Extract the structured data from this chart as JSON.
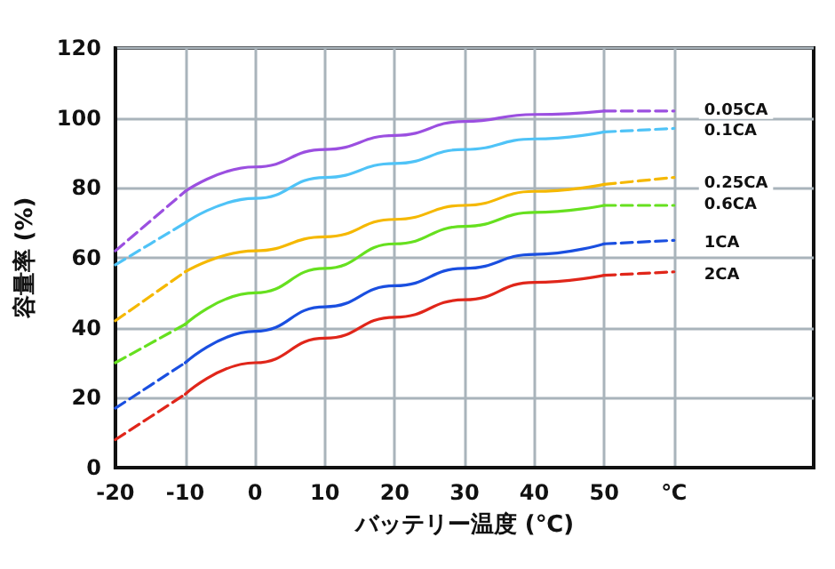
{
  "chart_data": {
    "type": "line",
    "xlabel": "バッテリー温度 (℃)",
    "ylabel": "容量率 (%)",
    "xlim": [
      -20,
      80
    ],
    "xticks": [
      -20,
      -10,
      0,
      10,
      20,
      30,
      40,
      50,
      {
        "value": 60,
        "label": "℃"
      }
    ],
    "ylim": [
      0,
      120
    ],
    "yticks": [
      0,
      20,
      40,
      60,
      80,
      100,
      120
    ],
    "grid": true,
    "marker": "none",
    "line_style": "solid",
    "series": [
      {
        "name": "0.05CA",
        "color": "#9b4fe0",
        "x": [
          -10,
          0,
          10,
          20,
          30,
          40,
          50
        ],
        "values": [
          79,
          86,
          91,
          95,
          99,
          101,
          102
        ]
      },
      {
        "color": "#9b4fe0",
        "line_style": "dashed",
        "x": [
          -20,
          -10,
          0,
          50,
          60
        ],
        "values": [
          62,
          79,
          null,
          102,
          102
        ]
      },
      {
        "name": "0.1CA",
        "color": "#4fc3f7",
        "x": [
          -10,
          0,
          10,
          20,
          30,
          40,
          50
        ],
        "values": [
          70,
          77,
          83,
          87,
          91,
          94,
          96
        ]
      },
      {
        "color": "#4fc3f7",
        "line_style": "dashed",
        "x": [
          -20,
          -10,
          0,
          50,
          60
        ],
        "values": [
          58,
          70,
          null,
          96,
          97
        ]
      },
      {
        "name": "0.25CA",
        "color": "#f5b800",
        "x": [
          -10,
          0,
          10,
          20,
          30,
          40,
          50
        ],
        "values": [
          56,
          62,
          66,
          71,
          75,
          79,
          81
        ]
      },
      {
        "color": "#f5b800",
        "line_style": "dashed",
        "x": [
          -20,
          -10,
          0,
          50,
          60
        ],
        "values": [
          42,
          56,
          null,
          81,
          83
        ]
      },
      {
        "name": "0.6CA",
        "color": "#66e01f",
        "x": [
          -10,
          0,
          10,
          20,
          30,
          40,
          50
        ],
        "values": [
          41,
          50,
          57,
          64,
          69,
          73,
          75
        ]
      },
      {
        "color": "#66e01f",
        "line_style": "dashed",
        "x": [
          -20,
          -10,
          0,
          50,
          60
        ],
        "values": [
          30,
          41,
          null,
          75,
          75
        ]
      },
      {
        "name": "1CA",
        "color": "#1a4fe0",
        "x": [
          -10,
          0,
          10,
          20,
          30,
          40,
          50
        ],
        "values": [
          30,
          39,
          46,
          52,
          57,
          61,
          64
        ]
      },
      {
        "color": "#1a4fe0",
        "line_style": "dashed",
        "x": [
          -20,
          -10,
          0,
          50,
          60
        ],
        "values": [
          17,
          30,
          null,
          64,
          65
        ]
      },
      {
        "name": "2CA",
        "color": "#e0261a",
        "x": [
          -10,
          0,
          10,
          20,
          30,
          40,
          50
        ],
        "values": [
          21,
          30,
          37,
          43,
          48,
          53,
          55
        ]
      },
      {
        "color": "#e0261a",
        "line_style": "dashed",
        "x": [
          -20,
          -10,
          0,
          50,
          60
        ],
        "values": [
          8,
          21,
          null,
          55,
          56
        ]
      }
    ]
  }
}
